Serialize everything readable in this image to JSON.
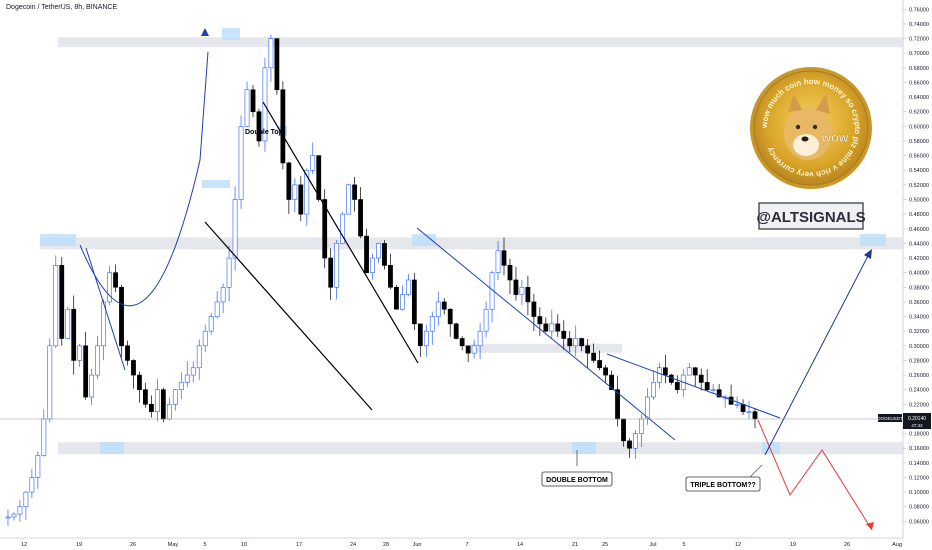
{
  "chart_title": "Dogecoin / TetherUS, 8h, BINANCE",
  "brand": {
    "handle": "@ALTSIGNALS",
    "coin_ring_text": "wow much coin how money so crypto plz mine v rich very currency",
    "coin_center": "WOW"
  },
  "annotations": {
    "double_top": "Double Top",
    "double_bottom": "DOUBLE BOTTOM",
    "triple_bottom": "TRIPLE BOTTOM??"
  },
  "price_tag": {
    "symbol": "DOGEUSDT",
    "price": "0.20140",
    "countdown": "47:42"
  },
  "colors": {
    "up": "#2962ff",
    "down": "#000000",
    "zone": "#d1d4dc",
    "bear_path": "#e53935",
    "bull_path": "#1e3a8a"
  },
  "chart_data": {
    "type": "candlestick",
    "y_ticks": [
      0.06,
      0.08,
      0.1,
      0.12,
      0.14,
      0.16,
      0.18,
      0.2,
      0.22,
      0.24,
      0.26,
      0.28,
      0.3,
      0.32,
      0.34,
      0.36,
      0.38,
      0.4,
      0.42,
      0.44,
      0.46,
      0.48,
      0.5,
      0.52,
      0.54,
      0.56,
      0.58,
      0.6,
      0.62,
      0.64,
      0.66,
      0.68,
      0.7,
      0.72,
      0.74,
      0.76
    ],
    "ylim": [
      0.04,
      0.77
    ],
    "x_ticks": [
      "12",
      "19",
      "26",
      "May",
      "5",
      "10",
      "17",
      "24",
      "28",
      "Jun",
      "7",
      "14",
      "21",
      "25",
      "Jul",
      "5",
      "12",
      "19",
      "26",
      "Aug"
    ],
    "horizontal_zones": [
      0.715,
      0.44,
      0.16
    ],
    "projection": {
      "bull_target": 0.43,
      "bear_path": [
        0.18,
        0.1,
        0.16,
        0.04
      ]
    },
    "price_path": [
      0.065,
      0.066,
      0.07,
      0.08,
      0.1,
      0.12,
      0.15,
      0.2,
      0.3,
      0.41,
      0.31,
      0.35,
      0.28,
      0.3,
      0.23,
      0.26,
      0.3,
      0.36,
      0.4,
      0.38,
      0.3,
      0.28,
      0.26,
      0.24,
      0.22,
      0.21,
      0.24,
      0.2,
      0.22,
      0.24,
      0.25,
      0.26,
      0.27,
      0.3,
      0.32,
      0.34,
      0.36,
      0.38,
      0.42,
      0.5,
      0.6,
      0.65,
      0.62,
      0.58,
      0.68,
      0.72,
      0.65,
      0.55,
      0.5,
      0.52,
      0.48,
      0.54,
      0.56,
      0.5,
      0.42,
      0.38,
      0.44,
      0.48,
      0.52,
      0.5,
      0.45,
      0.4,
      0.42,
      0.44,
      0.41,
      0.38,
      0.35,
      0.37,
      0.39,
      0.33,
      0.3,
      0.32,
      0.34,
      0.36,
      0.35,
      0.33,
      0.31,
      0.3,
      0.29,
      0.3,
      0.32,
      0.35,
      0.4,
      0.43,
      0.41,
      0.39,
      0.37,
      0.38,
      0.36,
      0.34,
      0.33,
      0.32,
      0.33,
      0.32,
      0.31,
      0.3,
      0.31,
      0.3,
      0.29,
      0.28,
      0.27,
      0.26,
      0.24,
      0.2,
      0.17,
      0.16,
      0.18,
      0.2,
      0.23,
      0.25,
      0.27,
      0.26,
      0.25,
      0.24,
      0.26,
      0.27,
      0.26,
      0.25,
      0.24,
      0.24,
      0.23,
      0.23,
      0.22,
      0.22,
      0.21,
      0.21,
      0.2
    ]
  }
}
